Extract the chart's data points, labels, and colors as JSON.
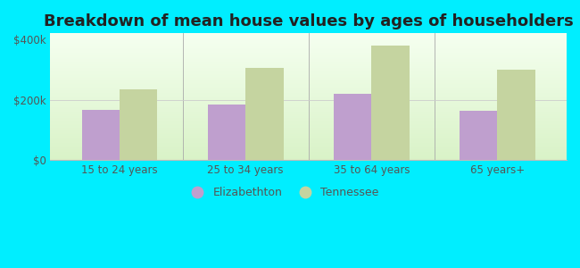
{
  "title": "Breakdown of mean house values by ages of householders",
  "categories": [
    "15 to 24 years",
    "25 to 34 years",
    "35 to 64 years",
    "65 years+"
  ],
  "elizabethton": [
    168000,
    185000,
    220000,
    163000
  ],
  "tennessee": [
    235000,
    305000,
    380000,
    300000
  ],
  "elizabethton_color": "#bf9fce",
  "tennessee_color": "#c5d4a0",
  "background_color": "#00eeff",
  "title_fontsize": 13,
  "tick_label_color": "#555555",
  "ylim": [
    0,
    420000
  ],
  "yticks": [
    0,
    200000,
    400000
  ],
  "ytick_labels": [
    "$0",
    "$200k",
    "$400k"
  ],
  "legend_labels": [
    "Elizabethton",
    "Tennessee"
  ],
  "bar_width": 0.3
}
